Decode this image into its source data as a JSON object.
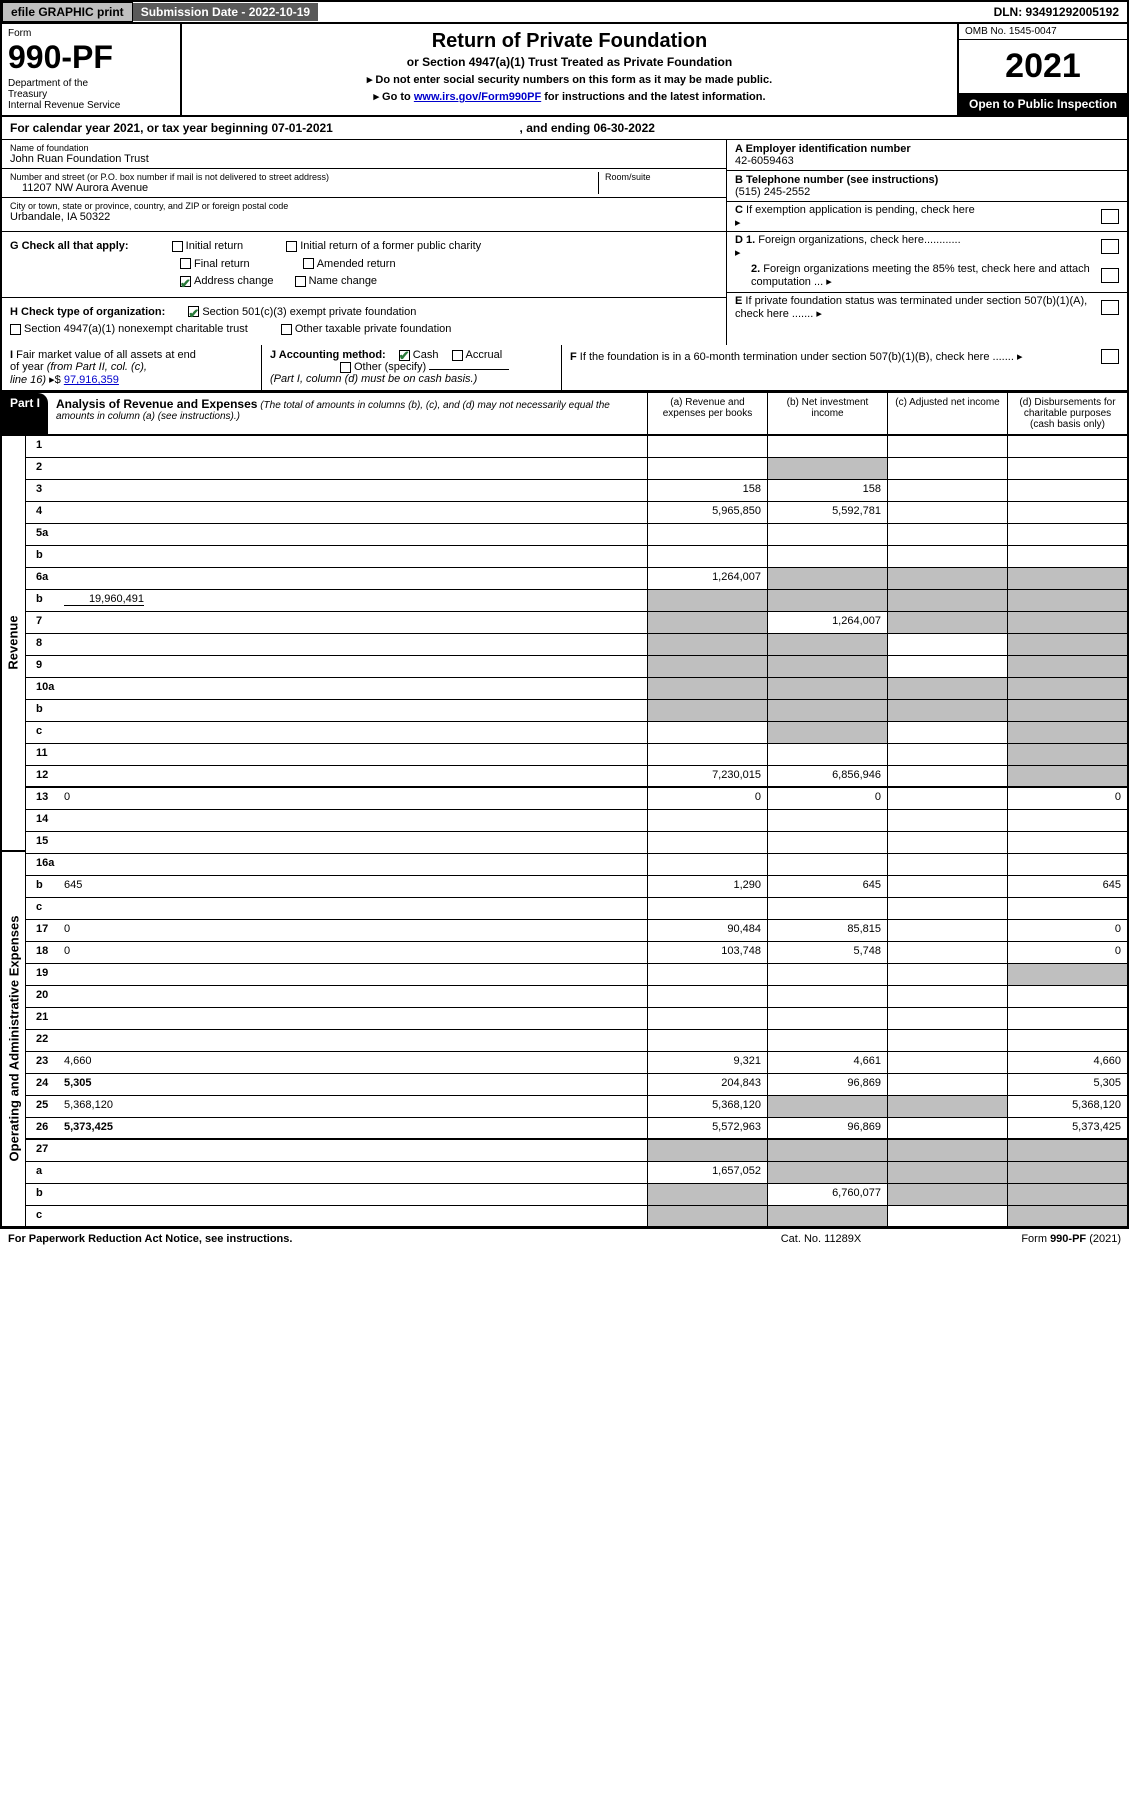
{
  "topbar": {
    "efile": "efile GRAPHIC print",
    "sub_label": "Submission Date - 2022-10-19",
    "dln": "DLN: 93491292005192"
  },
  "header": {
    "form_label": "Form",
    "form_number": "990-PF",
    "dept": "Department of the Treasury\nInternal Revenue Service",
    "title": "Return of Private Foundation",
    "subtitle": "or Section 4947(a)(1) Trust Treated as Private Foundation",
    "note1": "▸ Do not enter social security numbers on this form as it may be made public.",
    "note2_pre": "▸ Go to ",
    "note2_link": "www.irs.gov/Form990PF",
    "note2_post": " for instructions and the latest information.",
    "omb": "OMB No. 1545-0047",
    "year": "2021",
    "open": "Open to Public Inspection"
  },
  "calyear": {
    "pre": "For calendar year 2021, or tax year beginning ",
    "begin": "07-01-2021",
    "mid": " , and ending ",
    "end": "06-30-2022"
  },
  "entity": {
    "name_lbl": "Name of foundation",
    "name": "John Ruan Foundation Trust",
    "addr_lbl": "Number and street (or P.O. box number if mail is not delivered to street address)",
    "addr": "11207 NW Aurora Avenue",
    "room_lbl": "Room/suite",
    "room": "",
    "city_lbl": "City or town, state or province, country, and ZIP or foreign postal code",
    "city": "Urbandale, IA  50322",
    "ein_lbl": "A Employer identification number",
    "ein": "42-6059463",
    "tel_lbl": "B Telephone number (see instructions)",
    "tel": "(515) 245-2552",
    "c_lbl": "C If exemption application is pending, check here",
    "d1": "D 1. Foreign organizations, check here............",
    "d2": "2. Foreign organizations meeting the 85% test, check here and attach computation ...",
    "e_lbl": "E  If private foundation status was terminated under section 507(b)(1)(A), check here .......",
    "f_lbl": "F  If the foundation is in a 60-month termination under section 507(b)(1)(B), check here ......."
  },
  "g": {
    "label": "G Check all that apply:",
    "initial": "Initial return",
    "initial_former": "Initial return of a former public charity",
    "final": "Final return",
    "amended": "Amended return",
    "address": "Address change",
    "name_change": "Name change"
  },
  "h": {
    "label": "H Check type of organization:",
    "opt1": "Section 501(c)(3) exempt private foundation",
    "opt2": "Section 4947(a)(1) nonexempt charitable trust",
    "opt3": "Other taxable private foundation"
  },
  "i": {
    "label": "I Fair market value of all assets at end of year (from Part II, col. (c), line 16) ▸$ ",
    "value": "97,916,359"
  },
  "j": {
    "label": "J Accounting method:",
    "cash": "Cash",
    "accrual": "Accrual",
    "other": "Other (specify)",
    "note": "(Part I, column (d) must be on cash basis.)"
  },
  "part1": {
    "label": "Part I",
    "title": "Analysis of Revenue and Expenses",
    "title_note": " (The total of amounts in columns (b), (c), and (d) may not necessarily equal the amounts in column (a) (see instructions).)",
    "col_a": "(a)   Revenue and expenses per books",
    "col_b": "(b)   Net investment income",
    "col_c": "(c)   Adjusted net income",
    "col_d": "(d)   Disbursements for charitable purposes (cash basis only)"
  },
  "side": {
    "revenue": "Revenue",
    "expenses": "Operating and Administrative Expenses"
  },
  "lines": [
    {
      "n": "1",
      "d": "",
      "a": "",
      "b": "",
      "c": ""
    },
    {
      "n": "2",
      "d": "",
      "a": "",
      "b": "",
      "c": "",
      "checked": true,
      "cgrey": false,
      "dgrey": false,
      "bgrey": true
    },
    {
      "n": "3",
      "d": "",
      "a": "158",
      "b": "158",
      "c": ""
    },
    {
      "n": "4",
      "d": "",
      "a": "5,965,850",
      "b": "5,592,781",
      "c": ""
    },
    {
      "n": "5a",
      "d": "",
      "a": "",
      "b": "",
      "c": ""
    },
    {
      "n": "b",
      "d": "",
      "a": "",
      "b": "",
      "c": "",
      "underline": true
    },
    {
      "n": "6a",
      "d": "",
      "a": "1,264,007",
      "b": "",
      "c": "",
      "bgrey": true,
      "cgrey": true,
      "dgrey": true
    },
    {
      "n": "b",
      "d": "",
      "a": "",
      "b": "",
      "c": "",
      "inline_val": "19,960,491",
      "bgrey": true,
      "cgrey": true,
      "dgrey": true,
      "agrey": true
    },
    {
      "n": "7",
      "d": "",
      "a": "",
      "b": "1,264,007",
      "c": "",
      "agrey": true,
      "cgrey": true,
      "dgrey": true
    },
    {
      "n": "8",
      "d": "",
      "a": "",
      "b": "",
      "c": "",
      "agrey": true,
      "bgrey": true,
      "dgrey": true
    },
    {
      "n": "9",
      "d": "",
      "a": "",
      "b": "",
      "c": "",
      "agrey": true,
      "bgrey": true,
      "dgrey": true
    },
    {
      "n": "10a",
      "d": "",
      "a": "",
      "b": "",
      "c": "",
      "underline": true,
      "agrey": true,
      "bgrey": true,
      "cgrey": true,
      "dgrey": true
    },
    {
      "n": "b",
      "d": "",
      "a": "",
      "b": "",
      "c": "",
      "underline": true,
      "agrey": true,
      "bgrey": true,
      "cgrey": true,
      "dgrey": true
    },
    {
      "n": "c",
      "d": "",
      "a": "",
      "b": "",
      "c": "",
      "bgrey": true,
      "dgrey": true
    },
    {
      "n": "11",
      "d": "",
      "a": "",
      "b": "",
      "c": "",
      "dgrey": true
    },
    {
      "n": "12",
      "d": "",
      "a": "7,230,015",
      "b": "6,856,946",
      "c": "",
      "bold": true,
      "dgrey": true,
      "thick": true
    },
    {
      "n": "13",
      "d": "0",
      "a": "0",
      "b": "0",
      "c": ""
    },
    {
      "n": "14",
      "d": "",
      "a": "",
      "b": "",
      "c": ""
    },
    {
      "n": "15",
      "d": "",
      "a": "",
      "b": "",
      "c": ""
    },
    {
      "n": "16a",
      "d": "",
      "a": "",
      "b": "",
      "c": ""
    },
    {
      "n": "b",
      "d": "645",
      "a": "1,290",
      "b": "645",
      "c": ""
    },
    {
      "n": "c",
      "d": "",
      "a": "",
      "b": "",
      "c": ""
    },
    {
      "n": "17",
      "d": "0",
      "a": "90,484",
      "b": "85,815",
      "c": ""
    },
    {
      "n": "18",
      "d": "0",
      "a": "103,748",
      "b": "5,748",
      "c": ""
    },
    {
      "n": "19",
      "d": "",
      "a": "",
      "b": "",
      "c": "",
      "dgrey": true
    },
    {
      "n": "20",
      "d": "",
      "a": "",
      "b": "",
      "c": ""
    },
    {
      "n": "21",
      "d": "",
      "a": "",
      "b": "",
      "c": ""
    },
    {
      "n": "22",
      "d": "",
      "a": "",
      "b": "",
      "c": ""
    },
    {
      "n": "23",
      "d": "4,660",
      "a": "9,321",
      "b": "4,661",
      "c": ""
    },
    {
      "n": "24",
      "d": "5,305",
      "a": "204,843",
      "b": "96,869",
      "c": "",
      "bold": true
    },
    {
      "n": "25",
      "d": "5,368,120",
      "a": "5,368,120",
      "b": "",
      "c": "",
      "bgrey": true,
      "cgrey": true
    },
    {
      "n": "26",
      "d": "5,373,425",
      "a": "5,572,963",
      "b": "96,869",
      "c": "",
      "bold": true,
      "thick": true
    },
    {
      "n": "27",
      "d": "",
      "a": "",
      "b": "",
      "c": "",
      "agrey": true,
      "bgrey": true,
      "cgrey": true,
      "dgrey": true
    },
    {
      "n": "a",
      "d": "",
      "a": "1,657,052",
      "b": "",
      "c": "",
      "bold": true,
      "bgrey": true,
      "cgrey": true,
      "dgrey": true
    },
    {
      "n": "b",
      "d": "",
      "a": "",
      "b": "6,760,077",
      "c": "",
      "bold": true,
      "agrey": true,
      "cgrey": true,
      "dgrey": true
    },
    {
      "n": "c",
      "d": "",
      "a": "",
      "b": "",
      "c": "",
      "bold": true,
      "agrey": true,
      "bgrey": true,
      "dgrey": true,
      "thick": true
    }
  ],
  "footer": {
    "left": "For Paperwork Reduction Act Notice, see instructions.",
    "mid": "Cat. No. 11289X",
    "right": "Form 990-PF (2021)"
  }
}
